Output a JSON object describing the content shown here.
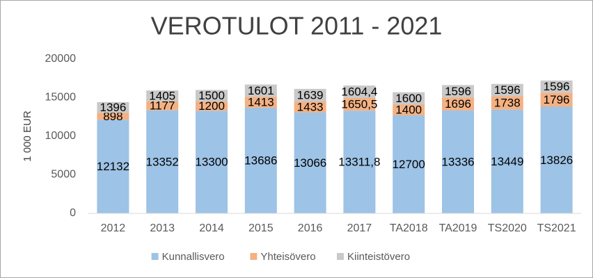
{
  "chart_data": {
    "type": "stacked_bar",
    "title": "VEROTULOT 2011 - 2021",
    "y_label": "1 000 EUR",
    "categories": [
      "2012",
      "2013",
      "2014",
      "2015",
      "2016",
      "2017",
      "TA2018",
      "TA2019",
      "TS2020",
      "TS2021"
    ],
    "series": [
      {
        "name": "Kunnallisvero",
        "color": "#9dc3e6",
        "values": [
          12132,
          13352,
          13300,
          13686,
          13066,
          13311.8,
          12700,
          13336,
          13449,
          13826
        ],
        "value_labels": [
          "12132",
          "13352",
          "13300",
          "13686",
          "13066",
          "13311,8",
          "12700",
          "13336",
          "13449",
          "13826"
        ]
      },
      {
        "name": "Yhteisövero",
        "color": "#f4b183",
        "values": [
          898,
          1177,
          1200,
          1413,
          1433,
          1650.5,
          1400,
          1696,
          1738,
          1796
        ],
        "value_labels": [
          "898",
          "1177",
          "1200",
          "1413",
          "1433",
          "1650,5",
          "1400",
          "1696",
          "1738",
          "1796"
        ]
      },
      {
        "name": "Kiinteistövero",
        "color": "#c9c9c9",
        "values": [
          1396,
          1405,
          1500,
          1601,
          1639,
          1604.4,
          1600,
          1596,
          1596,
          1596
        ],
        "value_labels": [
          "1396",
          "1405",
          "1500",
          "1601",
          "1639",
          "1604,4",
          "1600",
          "1596",
          "1596",
          "1596"
        ]
      }
    ],
    "ylim": [
      0,
      20000
    ],
    "yticks": [
      0,
      5000,
      10000,
      15000,
      20000
    ],
    "grid": false,
    "legend": "bottom"
  }
}
